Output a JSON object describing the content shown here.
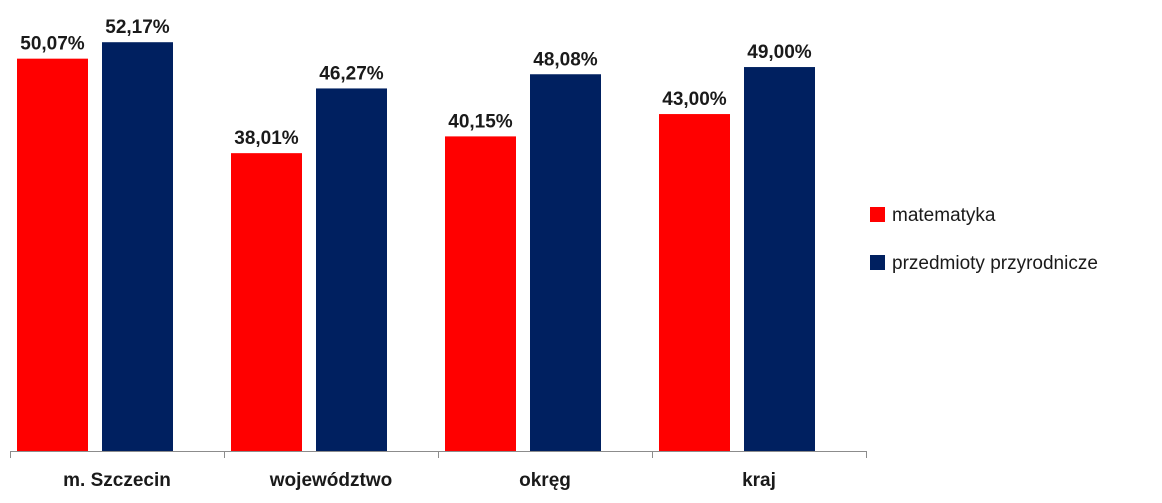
{
  "chart_data": {
    "type": "bar",
    "categories": [
      "m. Szczecin",
      "województwo",
      "okręg",
      "kraj"
    ],
    "series": [
      {
        "name": "matematyka",
        "color": "#ff0000",
        "values": [
          50.07,
          38.01,
          40.15,
          43.0
        ],
        "labels": [
          "50,07%",
          "38,01%",
          "40,15%",
          "43,00%"
        ]
      },
      {
        "name": "przedmioty przyrodnicze",
        "color": "#002060",
        "values": [
          52.17,
          46.27,
          48.08,
          49.0
        ],
        "labels": [
          "52,17%",
          "46,27%",
          "48,08%",
          "49,00%"
        ]
      }
    ],
    "ylim": [
      0,
      53.6
    ],
    "y_axis_visible": false,
    "grid": false,
    "legend": "right"
  }
}
